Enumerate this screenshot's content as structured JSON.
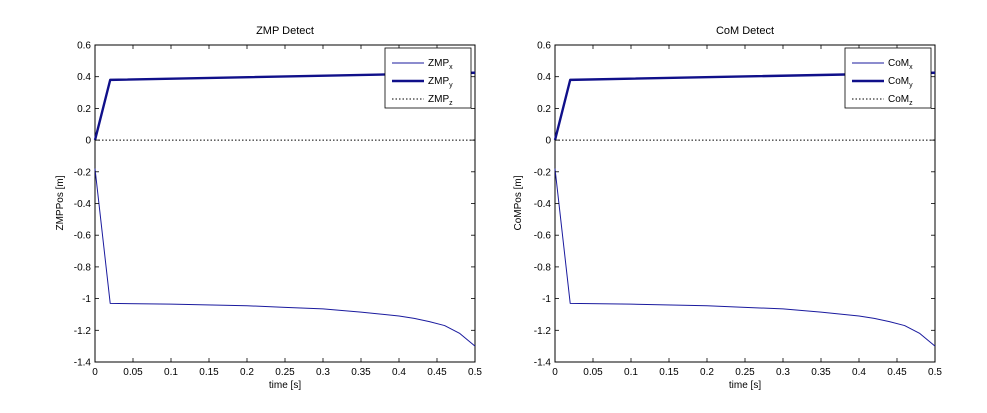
{
  "chart_data": [
    {
      "type": "line",
      "title": "ZMP Detect",
      "xlabel": "time [s]",
      "ylabel": "ZMPPos [m]",
      "xlim": [
        0,
        0.5
      ],
      "ylim": [
        -1.4,
        0.6
      ],
      "xticks": [
        "0",
        "0.05",
        "0.1",
        "0.15",
        "0.2",
        "0.25",
        "0.3",
        "0.35",
        "0.4",
        "0.45",
        "0.5"
      ],
      "yticks": [
        "-1.4",
        "-1.2",
        "-1",
        "-0.8",
        "-0.6",
        "-0.4",
        "-0.2",
        "0",
        "0.2",
        "0.4",
        "0.6"
      ],
      "grid": false,
      "legend": {
        "placement": "top-right"
      },
      "series": [
        {
          "name": "ZMP",
          "subscript": "x",
          "style": "thin",
          "color": "#1a1a9e",
          "x": [
            0,
            0.02,
            0.1,
            0.2,
            0.25,
            0.3,
            0.35,
            0.4,
            0.42,
            0.44,
            0.46,
            0.48,
            0.5
          ],
          "y": [
            -0.18,
            -1.03,
            -1.035,
            -1.045,
            -1.055,
            -1.065,
            -1.085,
            -1.11,
            -1.125,
            -1.145,
            -1.17,
            -1.22,
            -1.3
          ]
        },
        {
          "name": "ZMP",
          "subscript": "y",
          "style": "thick",
          "color": "#10108a",
          "x": [
            0,
            0.02,
            0.5
          ],
          "y": [
            0.0,
            0.38,
            0.425
          ]
        },
        {
          "name": "ZMP",
          "subscript": "z",
          "style": "dotted",
          "color": "#000000",
          "x": [
            0,
            0.5
          ],
          "y": [
            0,
            0
          ]
        }
      ]
    },
    {
      "type": "line",
      "title": "CoM Detect",
      "xlabel": "time [s]",
      "ylabel": "CoMPos [m]",
      "xlim": [
        0,
        0.5
      ],
      "ylim": [
        -1.4,
        0.6
      ],
      "xticks": [
        "0",
        "0.05",
        "0.1",
        "0.15",
        "0.2",
        "0.25",
        "0.3",
        "0.35",
        "0.4",
        "0.45",
        "0.5"
      ],
      "yticks": [
        "-1.4",
        "-1.2",
        "-1",
        "-0.8",
        "-0.6",
        "-0.4",
        "-0.2",
        "0",
        "0.2",
        "0.4",
        "0.6"
      ],
      "grid": false,
      "legend": {
        "placement": "top-right"
      },
      "series": [
        {
          "name": "CoM",
          "subscript": "x",
          "style": "thin",
          "color": "#1a1a9e",
          "x": [
            0,
            0.02,
            0.1,
            0.2,
            0.25,
            0.3,
            0.35,
            0.4,
            0.42,
            0.44,
            0.46,
            0.48,
            0.5
          ],
          "y": [
            -0.18,
            -1.03,
            -1.035,
            -1.045,
            -1.055,
            -1.065,
            -1.085,
            -1.11,
            -1.125,
            -1.145,
            -1.17,
            -1.22,
            -1.3
          ]
        },
        {
          "name": "CoM",
          "subscript": "y",
          "style": "thick",
          "color": "#10108a",
          "x": [
            0,
            0.02,
            0.5
          ],
          "y": [
            0.0,
            0.38,
            0.425
          ]
        },
        {
          "name": "CoM",
          "subscript": "z",
          "style": "dotted",
          "color": "#000000",
          "x": [
            0,
            0.5
          ],
          "y": [
            0,
            0
          ]
        }
      ]
    }
  ]
}
